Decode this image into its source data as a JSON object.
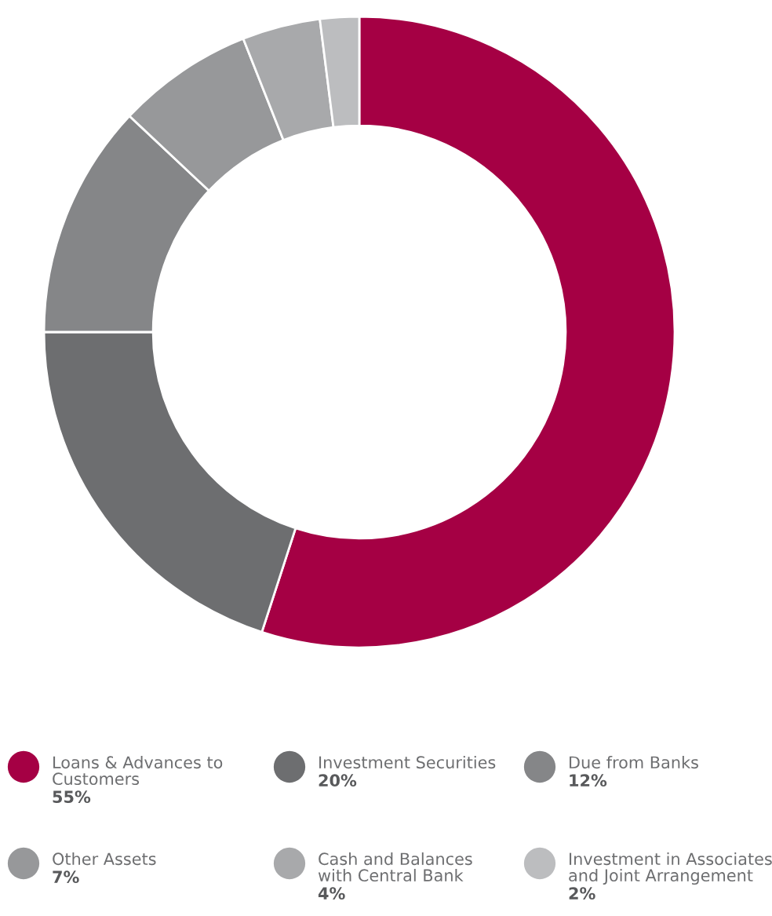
{
  "chart_data": {
    "type": "donut",
    "categories": [
      "Loans & Advances to\nCustomers",
      "Investment Securities",
      "Due from Banks",
      "Other Assets",
      "Cash and Balances\nwith Central Bank",
      "Investment in Associates\nand Joint Arrangement"
    ],
    "values": [
      55,
      20,
      12,
      7,
      4,
      2
    ],
    "colors": [
      "#a50044",
      "#6d6e70",
      "#858688",
      "#97989a",
      "#a8a9ab",
      "#bcbdbf"
    ],
    "value_labels": [
      "55%",
      "20%",
      "12%",
      "7%",
      "4%",
      "2%"
    ],
    "legend": "bottom"
  }
}
